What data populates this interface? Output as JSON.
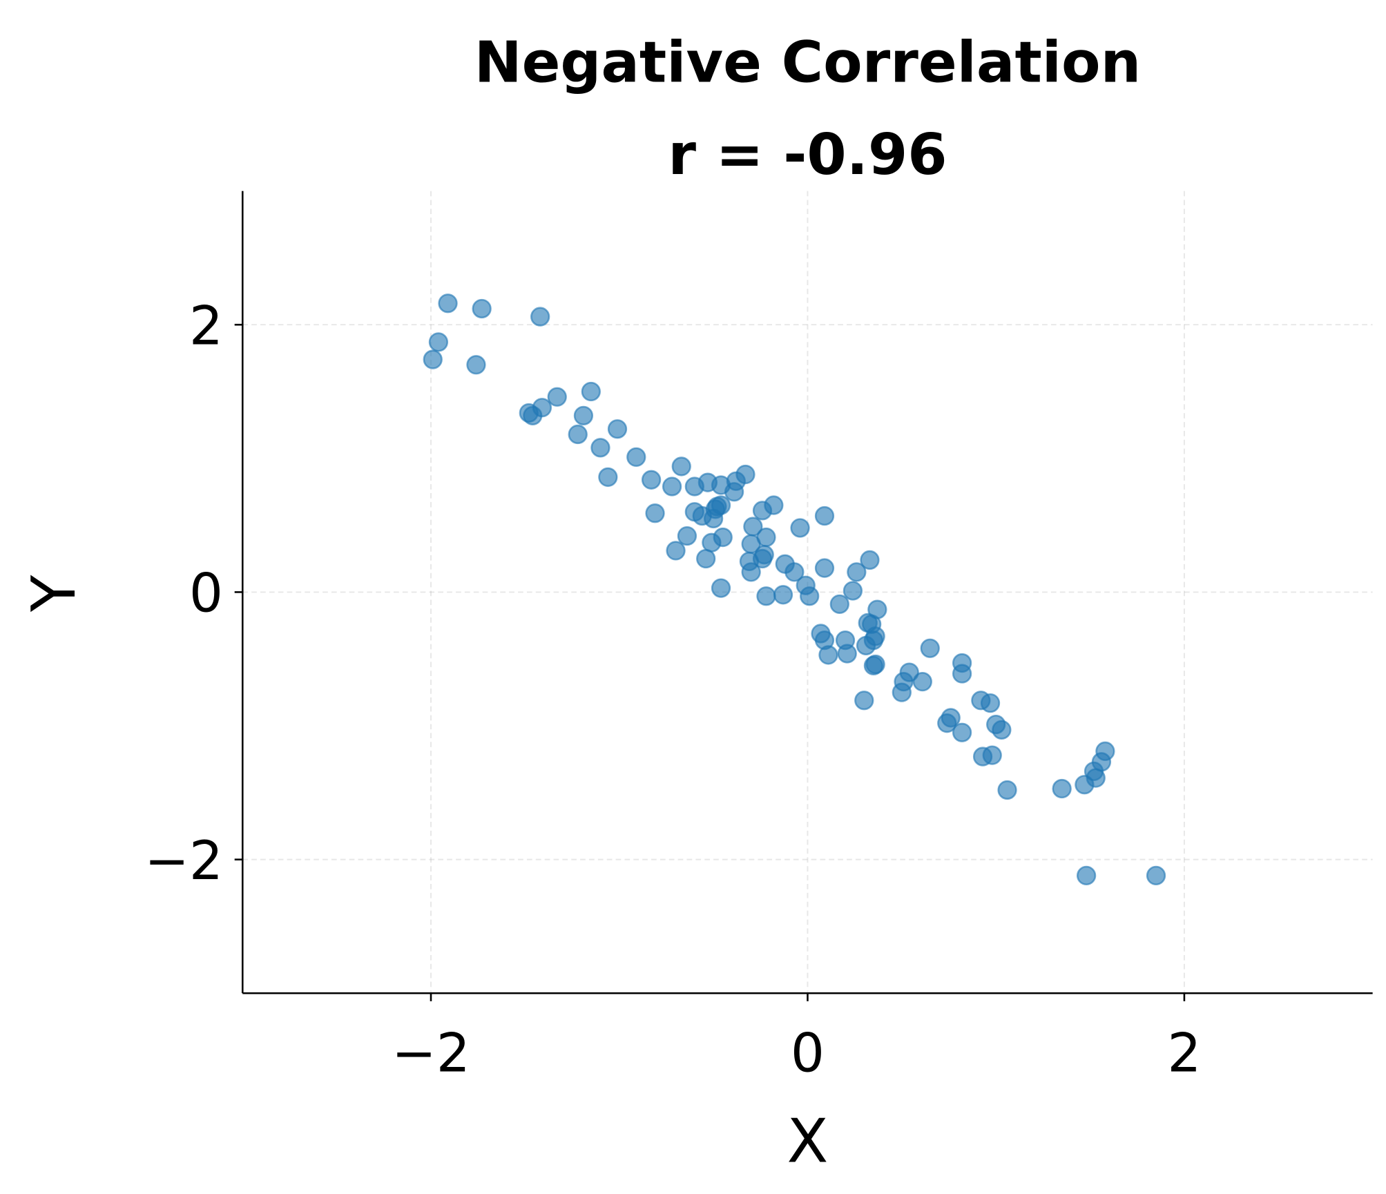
{
  "chart_data": {
    "type": "scatter",
    "title": "Negative Correlation",
    "subtitle": "r = -0.96",
    "xlabel": "X",
    "ylabel": "Y",
    "xlim": [
      -3,
      3
    ],
    "ylim": [
      -3,
      3
    ],
    "xticks": [
      -2,
      0,
      2
    ],
    "yticks": [
      -2,
      0,
      2
    ],
    "xtick_labels": [
      "−2",
      "0",
      "2"
    ],
    "ytick_labels": [
      "−2",
      "0",
      "2"
    ],
    "grid": true,
    "marker_color": "#1f77b4",
    "marker_alpha": 0.6,
    "points": [
      [
        -1.91,
        2.16
      ],
      [
        -1.73,
        2.12
      ],
      [
        -1.42,
        2.06
      ],
      [
        -1.96,
        1.87
      ],
      [
        -1.99,
        1.74
      ],
      [
        -1.76,
        1.7
      ],
      [
        -1.15,
        1.5
      ],
      [
        -1.33,
        1.46
      ],
      [
        -1.41,
        1.38
      ],
      [
        -1.48,
        1.34
      ],
      [
        -1.46,
        1.32
      ],
      [
        -1.19,
        1.32
      ],
      [
        -1.01,
        1.22
      ],
      [
        -1.22,
        1.18
      ],
      [
        -1.1,
        1.08
      ],
      [
        -0.91,
        1.01
      ],
      [
        -0.67,
        0.94
      ],
      [
        -0.33,
        0.88
      ],
      [
        -0.38,
        0.83
      ],
      [
        -0.83,
        0.84
      ],
      [
        -1.06,
        0.86
      ],
      [
        -0.72,
        0.79
      ],
      [
        -0.6,
        0.79
      ],
      [
        -0.53,
        0.82
      ],
      [
        -0.46,
        0.8
      ],
      [
        -0.39,
        0.75
      ],
      [
        -0.18,
        0.65
      ],
      [
        -0.24,
        0.61
      ],
      [
        -0.48,
        0.64
      ],
      [
        -0.46,
        0.65
      ],
      [
        -0.49,
        0.62
      ],
      [
        -0.6,
        0.6
      ],
      [
        -0.56,
        0.57
      ],
      [
        -0.5,
        0.55
      ],
      [
        -0.81,
        0.59
      ],
      [
        0.09,
        0.57
      ],
      [
        -0.04,
        0.48
      ],
      [
        -0.29,
        0.49
      ],
      [
        -0.22,
        0.41
      ],
      [
        -0.45,
        0.41
      ],
      [
        -0.64,
        0.42
      ],
      [
        -0.51,
        0.37
      ],
      [
        -0.3,
        0.36
      ],
      [
        -0.7,
        0.31
      ],
      [
        -0.23,
        0.28
      ],
      [
        -0.24,
        0.25
      ],
      [
        -0.54,
        0.25
      ],
      [
        -0.31,
        0.23
      ],
      [
        0.33,
        0.24
      ],
      [
        -0.12,
        0.21
      ],
      [
        0.09,
        0.18
      ],
      [
        0.26,
        0.15
      ],
      [
        -0.07,
        0.15
      ],
      [
        -0.3,
        0.15
      ],
      [
        -0.01,
        0.05
      ],
      [
        0.24,
        0.01
      ],
      [
        -0.46,
        0.03
      ],
      [
        -0.22,
        -0.03
      ],
      [
        -0.13,
        -0.02
      ],
      [
        0.01,
        -0.03
      ],
      [
        0.17,
        -0.09
      ],
      [
        0.37,
        -0.13
      ],
      [
        0.32,
        -0.23
      ],
      [
        0.34,
        -0.24
      ],
      [
        0.07,
        -0.31
      ],
      [
        0.36,
        -0.33
      ],
      [
        0.35,
        -0.36
      ],
      [
        0.09,
        -0.36
      ],
      [
        0.2,
        -0.36
      ],
      [
        0.31,
        -0.4
      ],
      [
        0.65,
        -0.42
      ],
      [
        0.11,
        -0.47
      ],
      [
        0.21,
        -0.46
      ],
      [
        0.82,
        -0.53
      ],
      [
        0.36,
        -0.54
      ],
      [
        0.35,
        -0.55
      ],
      [
        0.54,
        -0.6
      ],
      [
        0.82,
        -0.61
      ],
      [
        0.51,
        -0.67
      ],
      [
        0.61,
        -0.67
      ],
      [
        0.5,
        -0.75
      ],
      [
        0.3,
        -0.81
      ],
      [
        0.92,
        -0.81
      ],
      [
        0.97,
        -0.83
      ],
      [
        0.76,
        -0.94
      ],
      [
        0.74,
        -0.98
      ],
      [
        1.0,
        -0.99
      ],
      [
        1.03,
        -1.03
      ],
      [
        0.82,
        -1.05
      ],
      [
        1.58,
        -1.19
      ],
      [
        0.93,
        -1.23
      ],
      [
        0.98,
        -1.22
      ],
      [
        1.56,
        -1.27
      ],
      [
        1.52,
        -1.34
      ],
      [
        1.53,
        -1.39
      ],
      [
        1.47,
        -1.44
      ],
      [
        1.35,
        -1.47
      ],
      [
        1.06,
        -1.48
      ],
      [
        1.48,
        -2.12
      ],
      [
        1.85,
        -2.12
      ]
    ]
  }
}
